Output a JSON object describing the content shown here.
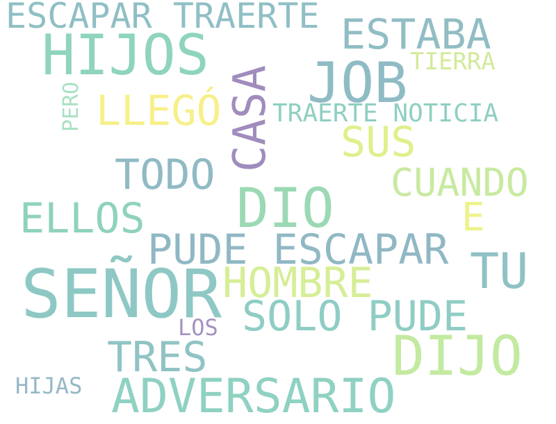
{
  "words": [
    {
      "text": "ESCAPAR TRAERTE",
      "color": "#8fbfc4"
    },
    {
      "text": "HIJOS",
      "color": "#8fd4bd"
    },
    {
      "text": "ESTABA",
      "color": "#91bdc4"
    },
    {
      "text": "JOB",
      "color": "#8fbcc4"
    },
    {
      "text": "CASA",
      "color": "#a08cbd"
    },
    {
      "text": "TIERRA",
      "color": "#d2ea9a"
    },
    {
      "text": "PERO",
      "color": "#a9e0c2"
    },
    {
      "text": "LLEGÓ",
      "color": "#f7f08a"
    },
    {
      "text": "TRAERTE NOTICIA",
      "color": "#8fcfc2"
    },
    {
      "text": "SUS",
      "color": "#dff08c"
    },
    {
      "text": "TODO",
      "color": "#90bac4"
    },
    {
      "text": "CUANDO",
      "color": "#c8eaa0"
    },
    {
      "text": "DIO",
      "color": "#9bd9b4"
    },
    {
      "text": "ELLOS",
      "color": "#8fd2be"
    },
    {
      "text": "E",
      "color": "#eef28a"
    },
    {
      "text": "PUDE ESCAPAR",
      "color": "#90b8c4"
    },
    {
      "text": "TU",
      "color": "#90c1c4"
    },
    {
      "text": "SEÑOR",
      "color": "#8ec8c4"
    },
    {
      "text": "HOMBRE",
      "color": "#d6ee96"
    },
    {
      "text": "SOLO PUDE",
      "color": "#8fcdc4"
    },
    {
      "text": "LOS",
      "color": "#a592c0"
    },
    {
      "text": "DIJO",
      "color": "#c3eaa0"
    },
    {
      "text": "TRES",
      "color": "#90c3c4"
    },
    {
      "text": "HIJAS",
      "color": "#95b8c6"
    },
    {
      "text": "ADVERSARIO",
      "color": "#8fd1c2"
    }
  ]
}
